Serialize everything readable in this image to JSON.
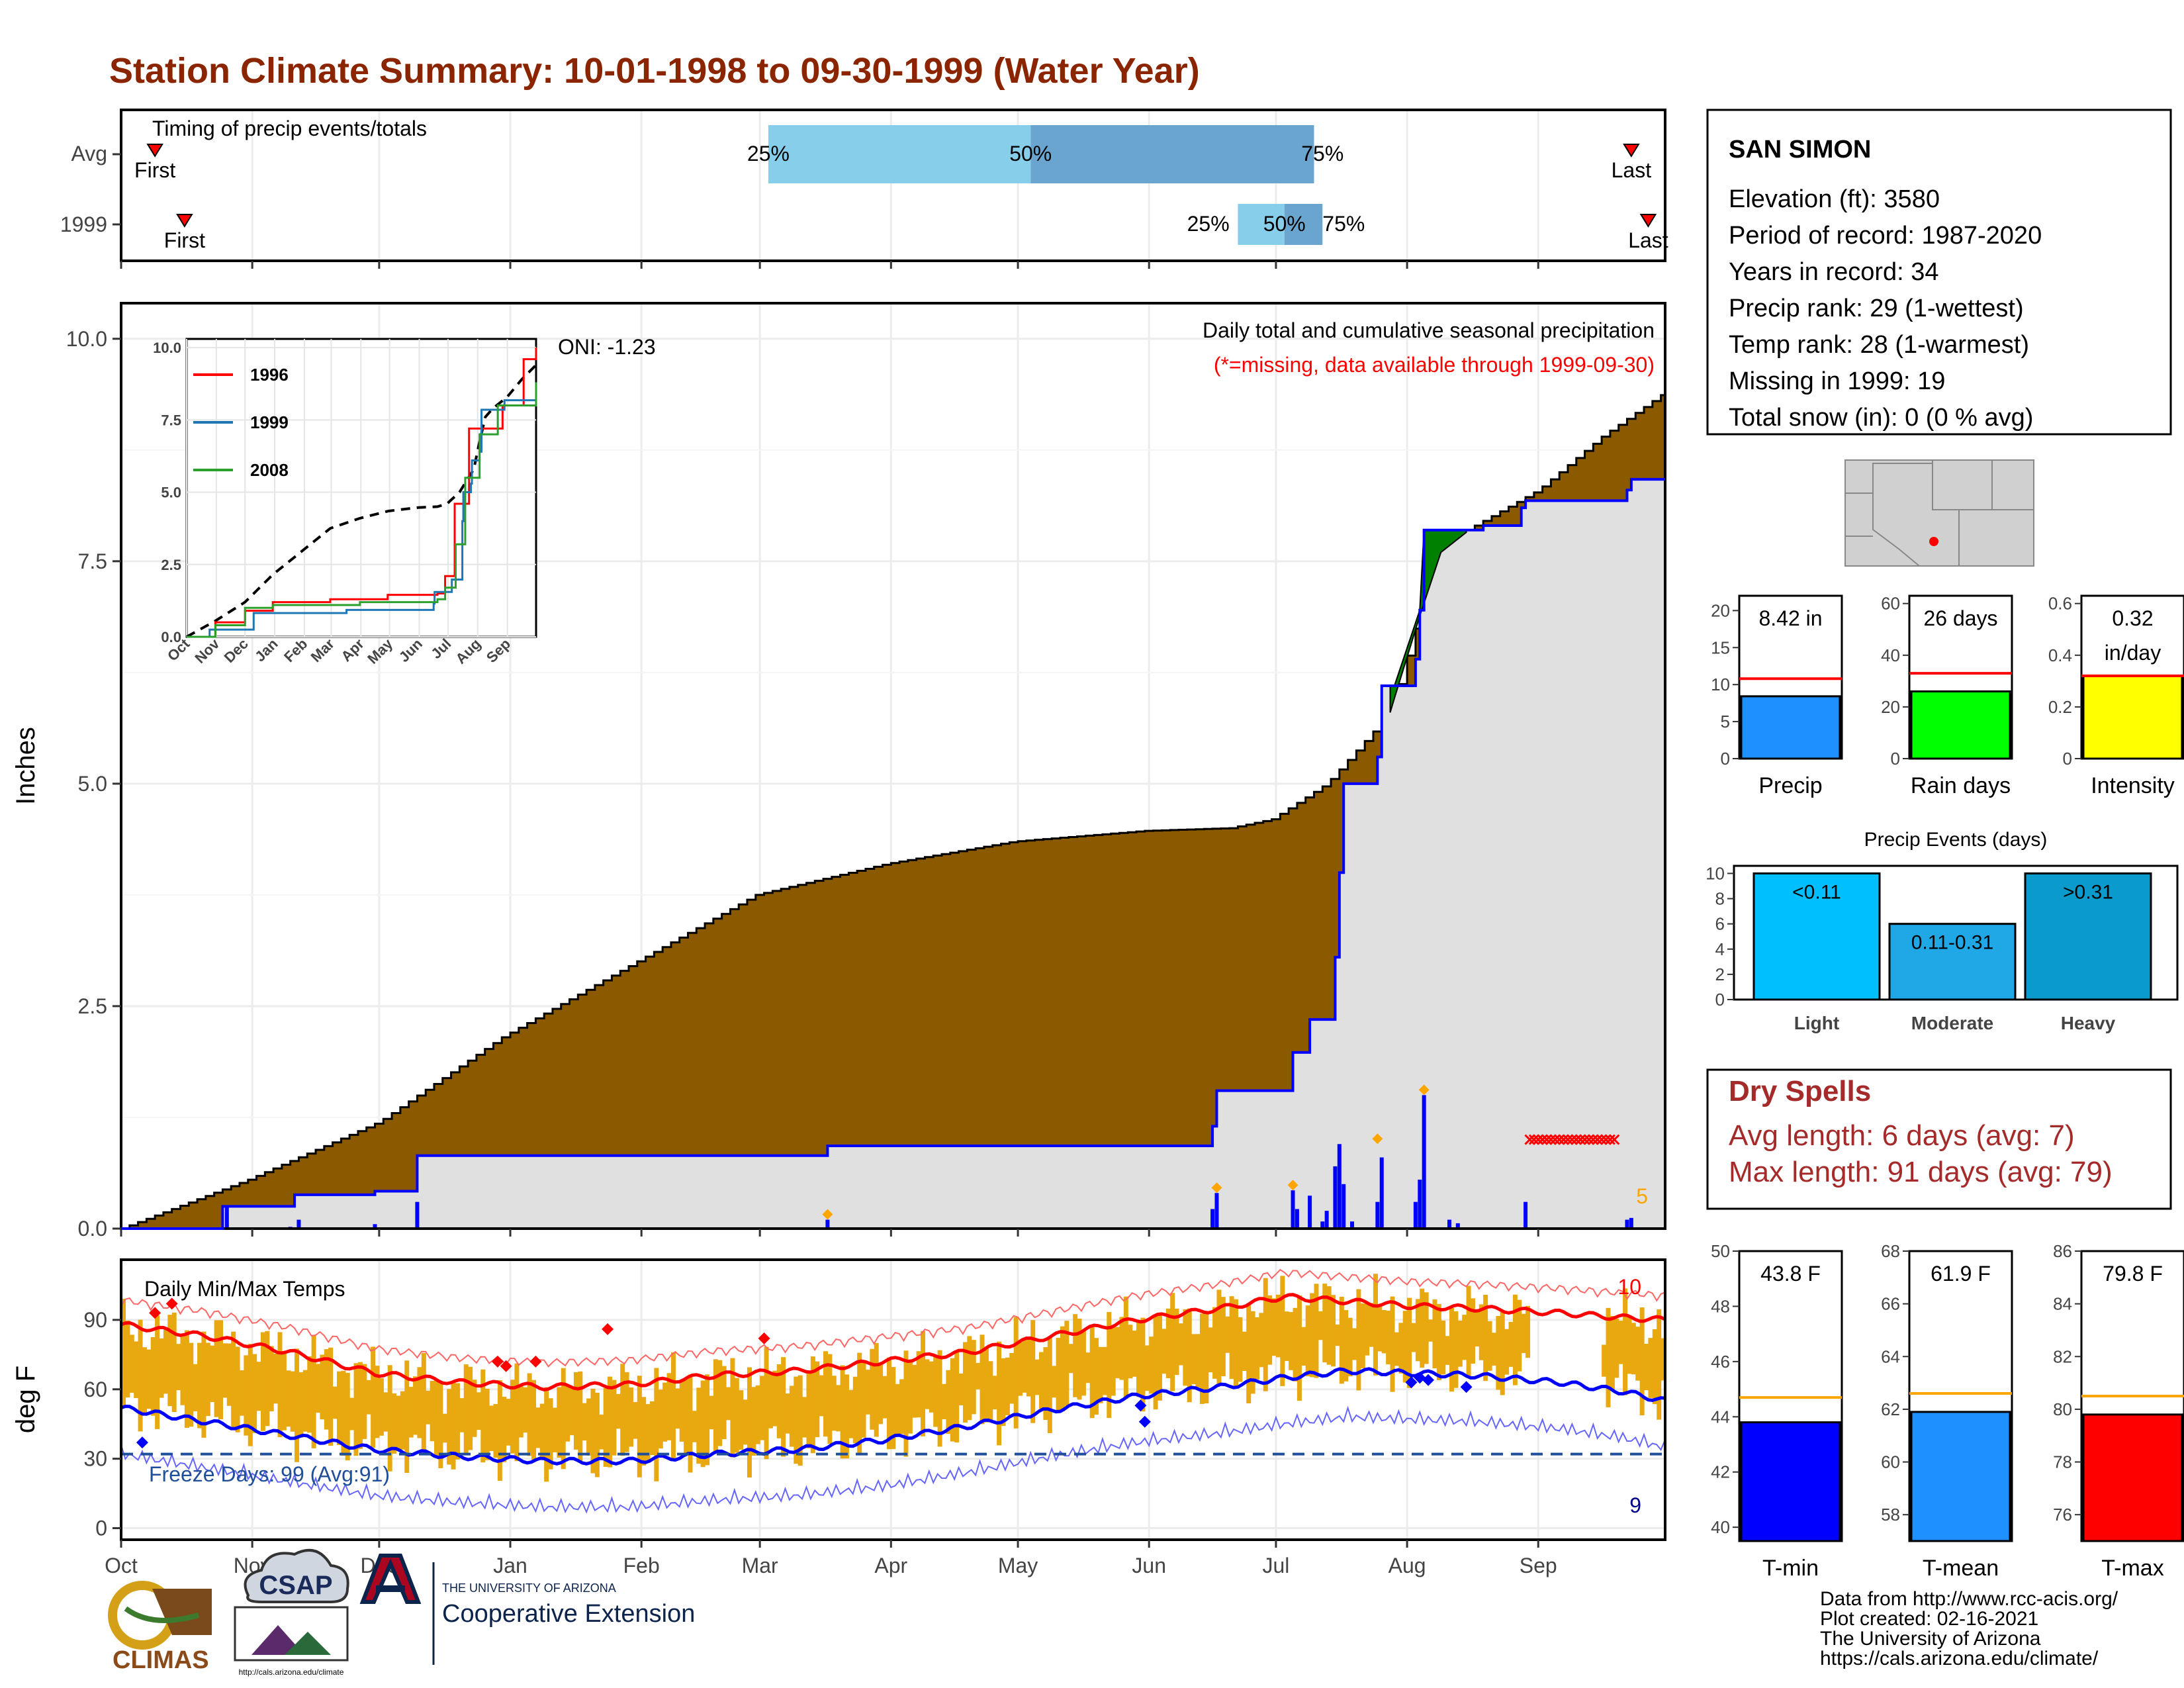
{
  "title": "Station Climate Summary: 10-01-1998 to 09-30-1999 (Water Year)",
  "colors": {
    "title": "#8b2500",
    "precip_fill": "#8b5a00",
    "obs_fill": "#e0e0e0",
    "obs_line": "#0000ff",
    "bar_light": "#87ceeb",
    "bar_dark": "#6aa5cf",
    "surplus": "#008000",
    "temp_band": "#e8a80f",
    "tmax_line": "#ff0000",
    "tmin_line": "#0000ff",
    "dry_spell": "#a52a2a"
  },
  "months": [
    "Oct",
    "Nov",
    "Dec",
    "Jan",
    "Feb",
    "Mar",
    "Apr",
    "May",
    "Jun",
    "Jul",
    "Aug",
    "Sep"
  ],
  "timing": {
    "title": "Timing of precip events/totals",
    "rows": [
      "Avg",
      "1999"
    ],
    "avg": {
      "first_label": "First",
      "last_label": "Last",
      "first_day": 8,
      "last_day": 357,
      "p25_day": 153,
      "p50_day": 215,
      "p75_day": 282,
      "p25_label": "25%",
      "p50_label": "50%",
      "p75_label": "75%"
    },
    "obs": {
      "first_label": "First",
      "last_label": "Last",
      "first_day": 15,
      "last_day": 361,
      "p25_day": 264,
      "p50_day": 275,
      "p75_day": 284,
      "p25_label": "25%",
      "p50_label": "50%",
      "p75_label": "75%"
    }
  },
  "precip": {
    "ylabel": "Inches",
    "yticks": [
      "0.0",
      "2.5",
      "5.0",
      "7.5",
      "10.0"
    ],
    "oni": "ONI: -1.23",
    "label1": "Daily total and cumulative seasonal precipitation",
    "label2": "(*=missing, data available through 1999-09-30)",
    "corner_count": "5",
    "avg_cum": [
      [
        0,
        0
      ],
      [
        30,
        0.55
      ],
      [
        61,
        1.2
      ],
      [
        90,
        2.15
      ],
      [
        120,
        2.95
      ],
      [
        150,
        3.75
      ],
      [
        181,
        4.1
      ],
      [
        211,
        4.35
      ],
      [
        242,
        4.47
      ],
      [
        262,
        4.5
      ],
      [
        272,
        4.6
      ],
      [
        285,
        5.0
      ],
      [
        300,
        5.8
      ],
      [
        305,
        6.6
      ],
      [
        312,
        7.6
      ],
      [
        320,
        7.9
      ],
      [
        335,
        8.3
      ],
      [
        350,
        8.9
      ],
      [
        365,
        9.4
      ]
    ],
    "obs_cum": [
      [
        0,
        0
      ],
      [
        24,
        0
      ],
      [
        24,
        0.25
      ],
      [
        41,
        0.25
      ],
      [
        41,
        0.38
      ],
      [
        60,
        0.38
      ],
      [
        60,
        0.42
      ],
      [
        70,
        0.42
      ],
      [
        70,
        0.82
      ],
      [
        167,
        0.82
      ],
      [
        167,
        0.93
      ],
      [
        258,
        0.93
      ],
      [
        258,
        1.15
      ],
      [
        259,
        1.15
      ],
      [
        259,
        1.55
      ],
      [
        277,
        1.55
      ],
      [
        277,
        1.98
      ],
      [
        281,
        1.98
      ],
      [
        281,
        2.35
      ],
      [
        287,
        2.35
      ],
      [
        287,
        3.05
      ],
      [
        288,
        3.05
      ],
      [
        288,
        4.0
      ],
      [
        289,
        4.0
      ],
      [
        289,
        5.0
      ],
      [
        297,
        5.0
      ],
      [
        297,
        5.3
      ],
      [
        298,
        5.3
      ],
      [
        298,
        6.1
      ],
      [
        306,
        6.1
      ],
      [
        306,
        6.4
      ],
      [
        307,
        6.4
      ],
      [
        307,
        6.95
      ],
      [
        308,
        6.95
      ],
      [
        308,
        7.85
      ],
      [
        322,
        7.85
      ],
      [
        322,
        7.9
      ],
      [
        331,
        7.9
      ],
      [
        331,
        8.1
      ],
      [
        332,
        8.1
      ],
      [
        332,
        8.18
      ],
      [
        356,
        8.18
      ],
      [
        356,
        8.3
      ],
      [
        357,
        8.3
      ],
      [
        357,
        8.42
      ],
      [
        365,
        8.42
      ]
    ],
    "daily": [
      [
        25,
        0.25
      ],
      [
        40,
        0.02
      ],
      [
        42,
        0.1
      ],
      [
        60,
        0.05
      ],
      [
        70,
        0.3
      ],
      [
        167,
        0.1
      ],
      [
        258,
        0.22
      ],
      [
        259,
        0.4
      ],
      [
        277,
        0.43
      ],
      [
        278,
        0.22
      ],
      [
        281,
        0.37
      ],
      [
        284,
        0.08
      ],
      [
        285,
        0.2
      ],
      [
        287,
        0.7
      ],
      [
        288,
        0.95
      ],
      [
        289,
        0.5
      ],
      [
        291,
        0.08
      ],
      [
        297,
        0.3
      ],
      [
        298,
        0.8
      ],
      [
        306,
        0.3
      ],
      [
        307,
        0.55
      ],
      [
        308,
        1.5
      ],
      [
        314,
        0.1
      ],
      [
        316,
        0.06
      ],
      [
        332,
        0.3
      ],
      [
        356,
        0.1
      ],
      [
        357,
        0.12
      ]
    ],
    "flags": [
      [
        167,
        0.1
      ],
      [
        259,
        0.4
      ],
      [
        277,
        0.43
      ],
      [
        297,
        0.95
      ],
      [
        308,
        1.5
      ]
    ],
    "dry_spell": [
      333,
      353,
      1.0
    ]
  },
  "inset": {
    "yticks": [
      "0.0",
      "2.5",
      "5.0",
      "7.5",
      "10.0"
    ],
    "months": [
      "Oct",
      "Nov",
      "Dec",
      "Jan",
      "Feb",
      "Mar",
      "Apr",
      "May",
      "Jun",
      "Jul",
      "Aug",
      "Sep"
    ],
    "series": [
      {
        "name": "1996",
        "color": "#ff0000",
        "points": [
          [
            0,
            0
          ],
          [
            30,
            0.5
          ],
          [
            61,
            0.9
          ],
          [
            90,
            1.2
          ],
          [
            150,
            1.3
          ],
          [
            210,
            1.45
          ],
          [
            262,
            1.5
          ],
          [
            270,
            2.1
          ],
          [
            280,
            4.6
          ],
          [
            295,
            7.2
          ],
          [
            330,
            8.0
          ],
          [
            352,
            9.6
          ],
          [
            365,
            10.0
          ]
        ]
      },
      {
        "name": "1999",
        "color": "#1f77b4",
        "points": [
          [
            0,
            0
          ],
          [
            24,
            0.25
          ],
          [
            70,
            0.82
          ],
          [
            167,
            0.93
          ],
          [
            258,
            1.15
          ],
          [
            259,
            1.55
          ],
          [
            277,
            1.98
          ],
          [
            288,
            4.0
          ],
          [
            289,
            5.0
          ],
          [
            297,
            5.3
          ],
          [
            298,
            6.1
          ],
          [
            306,
            6.4
          ],
          [
            308,
            7.85
          ],
          [
            332,
            8.18
          ],
          [
            365,
            8.42
          ]
        ]
      },
      {
        "name": "2008",
        "color": "#2ca02c",
        "points": [
          [
            0,
            0
          ],
          [
            30,
            0.4
          ],
          [
            61,
            1.0
          ],
          [
            90,
            1.1
          ],
          [
            181,
            1.2
          ],
          [
            262,
            1.3
          ],
          [
            270,
            1.7
          ],
          [
            281,
            3.2
          ],
          [
            291,
            5.5
          ],
          [
            306,
            7.0
          ],
          [
            325,
            8.0
          ],
          [
            365,
            8.8
          ]
        ]
      }
    ],
    "avg": [
      [
        0,
        0
      ],
      [
        30,
        0.55
      ],
      [
        61,
        1.2
      ],
      [
        90,
        2.15
      ],
      [
        120,
        2.95
      ],
      [
        150,
        3.75
      ],
      [
        181,
        4.1
      ],
      [
        211,
        4.35
      ],
      [
        242,
        4.47
      ],
      [
        262,
        4.5
      ],
      [
        272,
        4.6
      ],
      [
        285,
        5.0
      ],
      [
        300,
        5.8
      ],
      [
        305,
        6.6
      ],
      [
        312,
        7.6
      ],
      [
        320,
        7.9
      ],
      [
        335,
        8.3
      ],
      [
        350,
        8.9
      ],
      [
        365,
        9.4
      ]
    ]
  },
  "temps": {
    "title": "Daily Min/Max Temps",
    "ylabel": "deg F",
    "yticks": [
      "0",
      "30",
      "60",
      "90"
    ],
    "freeze_label": "Freeze Days: 99 (Avg:91)",
    "max_count": "10",
    "min_count": "9",
    "freeze_line": 32,
    "tmax_avg": [
      [
        0,
        88
      ],
      [
        20,
        83
      ],
      [
        40,
        76
      ],
      [
        60,
        67
      ],
      [
        80,
        63
      ],
      [
        100,
        61
      ],
      [
        120,
        62
      ],
      [
        140,
        66
      ],
      [
        160,
        68
      ],
      [
        180,
        72
      ],
      [
        200,
        76
      ],
      [
        220,
        83
      ],
      [
        240,
        90
      ],
      [
        260,
        95
      ],
      [
        275,
        100
      ],
      [
        290,
        98
      ],
      [
        305,
        96
      ],
      [
        320,
        95
      ],
      [
        340,
        93
      ],
      [
        355,
        91
      ],
      [
        365,
        90
      ]
    ],
    "tmin_avg": [
      [
        0,
        52
      ],
      [
        20,
        46
      ],
      [
        40,
        40
      ],
      [
        60,
        34
      ],
      [
        80,
        31
      ],
      [
        100,
        29
      ],
      [
        120,
        29
      ],
      [
        140,
        32
      ],
      [
        160,
        34
      ],
      [
        180,
        38
      ],
      [
        200,
        44
      ],
      [
        220,
        51
      ],
      [
        240,
        57
      ],
      [
        260,
        61
      ],
      [
        275,
        65
      ],
      [
        290,
        68
      ],
      [
        305,
        67
      ],
      [
        320,
        66
      ],
      [
        340,
        63
      ],
      [
        355,
        59
      ],
      [
        365,
        55
      ]
    ]
  },
  "station": {
    "name": "SAN SIMON",
    "lines": [
      "Elevation (ft): 3580",
      "Period of record: 1987-2020",
      "Years in record: 34",
      "Precip rank: 29 (1-wettest)",
      "Temp rank: 28 (1-warmest)",
      "Missing in 1999: 19",
      "Total snow (in): 0 (0 % avg)"
    ]
  },
  "summary_bars": [
    {
      "label": "Precip",
      "value": 8.42,
      "avg": 10.8,
      "yticks": [
        0,
        5,
        10,
        15,
        20
      ],
      "ymax": 22,
      "value_label": "8.42 in",
      "color": "#1e90ff",
      "ref": "#ff0000"
    },
    {
      "label": "Rain days",
      "value": 26,
      "avg": 33,
      "yticks": [
        0,
        20,
        40,
        60
      ],
      "ymax": 63,
      "value_label": "26 days",
      "color": "#00ff00",
      "ref": "#ff0000"
    },
    {
      "label": "Intensity",
      "value": 0.32,
      "avg": 0.32,
      "yticks": [
        0.0,
        0.2,
        0.4,
        0.6
      ],
      "ymax": 0.63,
      "value_label": "0.32",
      "value_label2": "in/day",
      "color": "#ffff00",
      "ref": "#ff0000"
    }
  ],
  "events": {
    "title": "Precip Events (days)",
    "yticks": [
      0,
      2,
      4,
      6,
      8,
      10
    ],
    "bars": [
      {
        "label": "Light",
        "range": "<0.11",
        "value": 10,
        "color": "#00bfff"
      },
      {
        "label": "Moderate",
        "range": "0.11-0.31",
        "value": 6,
        "color": "#1fa7e6"
      },
      {
        "label": "Heavy",
        "range": ">0.31",
        "value": 10,
        "color": "#0a9acc"
      }
    ]
  },
  "dry_spells": {
    "title": "Dry Spells",
    "avg": "Avg length: 6 days (avg: 7)",
    "max": "Max length: 91 days (avg: 79)"
  },
  "temp_bars": [
    {
      "label": "T-min",
      "value": 43.8,
      "avg": 44.7,
      "ymin": 39.5,
      "ymax": 50,
      "yticks": [
        40,
        42,
        44,
        46,
        48,
        50
      ],
      "value_label": "43.8 F",
      "color": "#0000ff"
    },
    {
      "label": "T-mean",
      "value": 61.9,
      "avg": 62.6,
      "ymin": 57,
      "ymax": 68,
      "yticks": [
        58,
        60,
        62,
        64,
        66,
        68
      ],
      "value_label": "61.9 F",
      "color": "#1e90ff"
    },
    {
      "label": "T-max",
      "value": 79.8,
      "avg": 80.5,
      "ymin": 75,
      "ymax": 86,
      "yticks": [
        76,
        78,
        80,
        82,
        84,
        86
      ],
      "value_label": "79.8 F",
      "color": "#ff0000"
    }
  ],
  "footer": {
    "lines": [
      "Data from http://www.rcc-acis.org/",
      "Plot created: 02-16-2021",
      "The University of Arizona",
      "https://cals.arizona.edu/climate/"
    ],
    "climas": "CLIMAS",
    "csap": "CSAP",
    "csap_url": "http://cals.arizona.edu/climate",
    "ua_top": "THE UNIVERSITY OF ARIZONA",
    "ua_bottom": "Cooperative Extension"
  }
}
